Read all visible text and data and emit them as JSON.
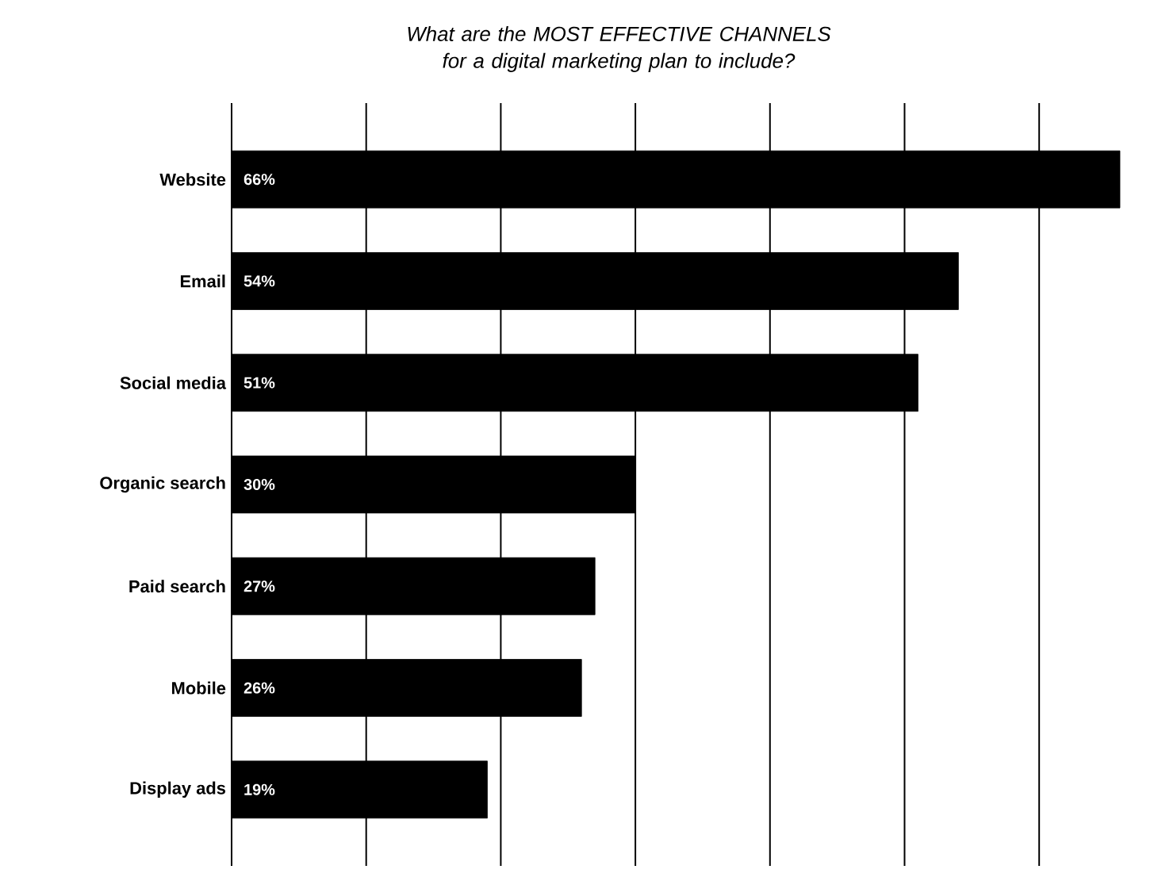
{
  "chart_data": {
    "type": "bar",
    "orientation": "horizontal",
    "title": "What are the MOST EFFECTIVE CHANNELS for a digital marketing plan to include?",
    "categories": [
      "Website",
      "Email",
      "Social media",
      "Organic search",
      "Paid search",
      "Mobile",
      "Display ads"
    ],
    "values": [
      66,
      54,
      51,
      30,
      27,
      26,
      19
    ],
    "value_labels": [
      "66%",
      "54%",
      "51%",
      "30%",
      "27%",
      "26%",
      "19%"
    ],
    "color": "#000000",
    "xlim": [
      0,
      66
    ],
    "xticks": [
      {
        "value": 0,
        "label": null
      },
      {
        "value": 10,
        "label": null
      },
      {
        "value": 20,
        "label": null
      },
      {
        "value": 30,
        "label": null
      },
      {
        "value": 40,
        "label": null
      },
      {
        "value": 50,
        "label": null
      },
      {
        "value": 60,
        "label": null
      }
    ],
    "grid": "x"
  }
}
